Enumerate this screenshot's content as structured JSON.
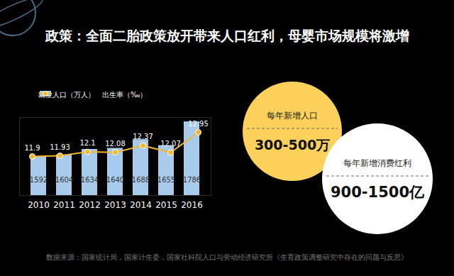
{
  "chart_data": {
    "type": "bar",
    "title": "政策：全面二胎政策放开带来人口红利，母婴市场规模将激增",
    "categories": [
      "2010",
      "2011",
      "2012",
      "2013",
      "2014",
      "2015",
      "2016"
    ],
    "series": [
      {
        "name": "出生人口（万人）",
        "type": "bar",
        "color": "#a8cbeb",
        "values": [
          1592,
          1604,
          1634,
          1640,
          1688,
          1655,
          1786
        ]
      },
      {
        "name": "出生率（‰）",
        "type": "line",
        "axis": "y2",
        "color": "#f2b630",
        "marker": "circle",
        "values": [
          11.9,
          11.93,
          12.1,
          12.08,
          12.37,
          12.07,
          12.95
        ]
      }
    ],
    "ylim": [
      1380,
      1810
    ],
    "y2lim": [
      10.2,
      13.6
    ],
    "data_labels": true,
    "tick_labels": "x",
    "legend": "top-left"
  },
  "callouts": [
    {
      "label": "每年新增人口",
      "value": "300-500万",
      "color": "#fbd15b"
    },
    {
      "label": "每年新增消费红利",
      "value": "900-1500亿",
      "color": "#ffffff"
    }
  ],
  "source": "数据来源：国家统计局，国家计生委，国家社科院人口与劳动经济研究所《生育政策调整研究中存在的问题与反思》"
}
